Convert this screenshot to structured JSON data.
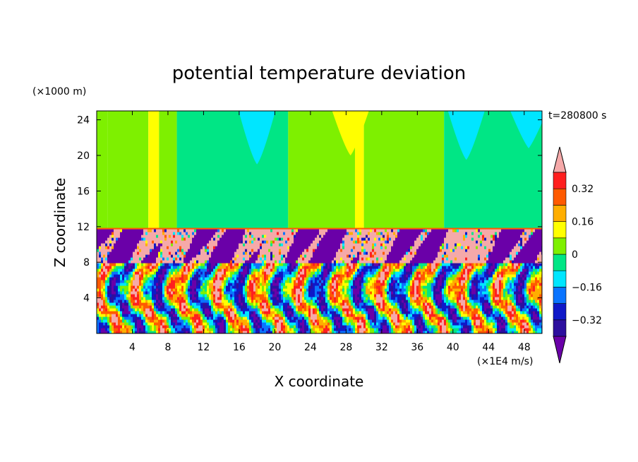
{
  "chart_data": {
    "type": "heatmap",
    "title": "potential temperature deviation",
    "xlabel": "X coordinate",
    "ylabel": "Z coordinate",
    "x_unit": "(×1E4 m/s)",
    "y_unit": "(×1000 m)",
    "time_label": "t=280800 s",
    "xlim": [
      0,
      50
    ],
    "ylim": [
      0,
      25
    ],
    "x_ticks": [
      4,
      8,
      12,
      16,
      20,
      24,
      28,
      32,
      36,
      40,
      44,
      48
    ],
    "y_ticks": [
      4,
      8,
      12,
      16,
      20,
      24
    ],
    "tropopause_height": 11.7,
    "colorbar": {
      "levels": [
        -0.4,
        -0.32,
        -0.24,
        -0.16,
        -0.08,
        0,
        0.08,
        0.16,
        0.24,
        0.32,
        0.4
      ],
      "labels": [
        {
          "value": 0.32,
          "text": "0.32"
        },
        {
          "value": 0.16,
          "text": "0.16"
        },
        {
          "value": 0,
          "text": "0"
        },
        {
          "value": -0.16,
          "text": "−0.16"
        },
        {
          "value": -0.32,
          "text": "−0.32"
        }
      ],
      "colors": [
        "#6a00a8",
        "#2d0f9e",
        "#0f18c8",
        "#0a74ff",
        "#00e6ff",
        "#00e685",
        "#7ef000",
        "#ffff00",
        "#ffae00",
        "#ff5a00",
        "#ff1f1f",
        "#f5a9a9"
      ]
    },
    "upper_region_bands": [
      {
        "x0": 0,
        "x1": 1.2,
        "value": 0.05
      },
      {
        "x0": 1.2,
        "x1": 5.8,
        "value": 0.05
      },
      {
        "x0": 5.8,
        "x1": 7.0,
        "value": 0.12
      },
      {
        "x0": 7.0,
        "x1": 9.0,
        "value": 0.05
      },
      {
        "x0": 9.0,
        "x1": 21.5,
        "value": -0.05
      },
      {
        "x0": 21.5,
        "x1": 29.0,
        "value": 0.05
      },
      {
        "x0": 29.0,
        "x1": 30.0,
        "value": 0.12
      },
      {
        "x0": 30.0,
        "x1": 39.0,
        "value": 0.05
      },
      {
        "x0": 39.0,
        "x1": 50.0,
        "value": -0.05
      }
    ],
    "upper_region_patches": [
      {
        "x": 18.0,
        "z": 22.5,
        "value": -0.1
      },
      {
        "x": 41.5,
        "z": 23.0,
        "value": -0.1
      },
      {
        "x": 48.5,
        "z": 24.3,
        "value": -0.1
      },
      {
        "x": 28.5,
        "z": 23.5,
        "value": 0.12
      }
    ],
    "lower_region_description_values": {
      "band_8_to_11_7": [
        -0.4,
        0.45
      ],
      "band_0_to_8": [
        -0.4,
        0.4
      ]
    }
  }
}
